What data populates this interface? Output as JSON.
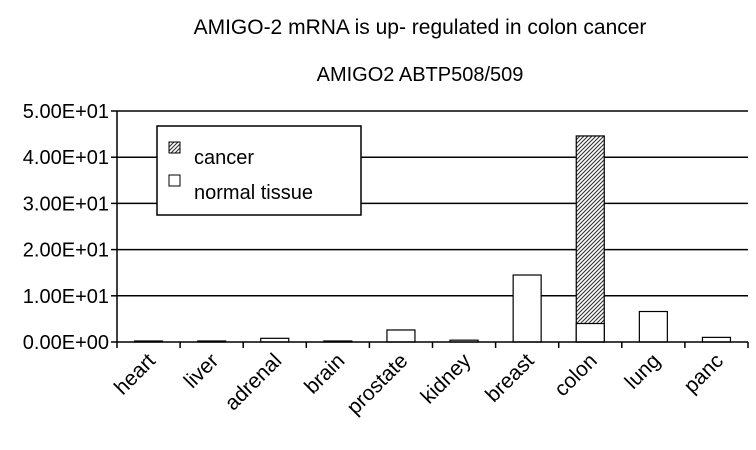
{
  "chart_data": {
    "type": "bar",
    "title": "AMIGO-2 mRNA is up- regulated in colon cancer",
    "subtitle": "AMIGO2 ABTP508/509",
    "categories": [
      "heart",
      "liver",
      "adrenal",
      "brain",
      "prostate",
      "kidney",
      "breast",
      "colon",
      "lung",
      "panc"
    ],
    "series": [
      {
        "name": "cancer",
        "pattern": "hatched",
        "values": [
          null,
          null,
          null,
          null,
          null,
          null,
          null,
          44.6,
          null,
          null
        ]
      },
      {
        "name": "normal tissue",
        "pattern": "white",
        "values": [
          0.2,
          0.1,
          0.8,
          0.1,
          2.6,
          0.4,
          14.5,
          4.0,
          6.6,
          1.0
        ]
      }
    ],
    "y_ticks": [
      "0.00E+00",
      "1.00E+01",
      "2.00E+01",
      "3.00E+01",
      "4.00E+01",
      "5.00E+01"
    ],
    "ylim": [
      0,
      50
    ],
    "xlabel": "",
    "ylabel": "",
    "grid": "horizontal",
    "legend_position": "top-left"
  }
}
